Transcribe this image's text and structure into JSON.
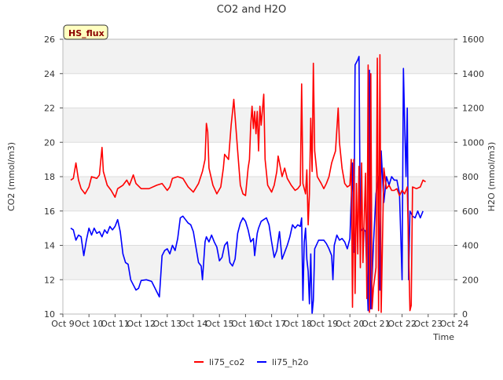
{
  "chart_data": {
    "type": "line",
    "title": "CO2 and H2O",
    "xlabel": "Time",
    "ylabel_left": "CO2 (mmol/m3)",
    "ylabel_right": "H2O (mmol/m3)",
    "badge": "HS_flux",
    "x_ticks": [
      "Oct 9",
      "Oct 10",
      "Oct 11",
      "Oct 12",
      "Oct 13",
      "Oct 14",
      "Oct 15",
      "Oct 16",
      "Oct 17",
      "Oct 18",
      "Oct 19",
      "Oct 20",
      "Oct 21",
      "Oct 22",
      "Oct 23",
      "Oct 24"
    ],
    "xlim": [
      9,
      24
    ],
    "ylim_left": [
      10,
      26
    ],
    "y_ticks_left": [
      "10",
      "12",
      "14",
      "16",
      "18",
      "20",
      "22",
      "24",
      "26"
    ],
    "ylim_right": [
      0,
      1600
    ],
    "y_ticks_right": [
      "0",
      "200",
      "400",
      "600",
      "800",
      "1000",
      "1200",
      "1400",
      "1600"
    ],
    "grid": true,
    "legend_position": "bottom",
    "colors": {
      "li75_co2": "#ff0000",
      "li75_h2o": "#0000ff",
      "band": "#f2f2f2",
      "grid": "#dddddd"
    },
    "series": [
      {
        "name": "li75_co2",
        "axis": "left",
        "points": [
          [
            9.3,
            17.8
          ],
          [
            9.4,
            17.9
          ],
          [
            9.5,
            18.8
          ],
          [
            9.6,
            17.8
          ],
          [
            9.7,
            17.3
          ],
          [
            9.85,
            17.0
          ],
          [
            10.0,
            17.4
          ],
          [
            10.1,
            18.0
          ],
          [
            10.3,
            17.9
          ],
          [
            10.4,
            18.1
          ],
          [
            10.5,
            19.7
          ],
          [
            10.55,
            18.3
          ],
          [
            10.7,
            17.5
          ],
          [
            10.85,
            17.2
          ],
          [
            11.0,
            16.8
          ],
          [
            11.1,
            17.3
          ],
          [
            11.3,
            17.5
          ],
          [
            11.45,
            17.8
          ],
          [
            11.55,
            17.5
          ],
          [
            11.7,
            18.1
          ],
          [
            11.8,
            17.6
          ],
          [
            12.0,
            17.3
          ],
          [
            12.3,
            17.3
          ],
          [
            12.6,
            17.5
          ],
          [
            12.8,
            17.6
          ],
          [
            13.0,
            17.2
          ],
          [
            13.1,
            17.4
          ],
          [
            13.2,
            17.9
          ],
          [
            13.4,
            18.0
          ],
          [
            13.6,
            17.9
          ],
          [
            13.8,
            17.4
          ],
          [
            14.0,
            17.1
          ],
          [
            14.2,
            17.6
          ],
          [
            14.35,
            18.3
          ],
          [
            14.45,
            19.0
          ],
          [
            14.5,
            21.1
          ],
          [
            14.55,
            20.6
          ],
          [
            14.6,
            18.5
          ],
          [
            14.75,
            17.5
          ],
          [
            14.9,
            17.0
          ],
          [
            15.05,
            17.4
          ],
          [
            15.15,
            18.5
          ],
          [
            15.2,
            19.3
          ],
          [
            15.35,
            19.0
          ],
          [
            15.45,
            21.0
          ],
          [
            15.55,
            22.5
          ],
          [
            15.6,
            21.5
          ],
          [
            15.7,
            19.5
          ],
          [
            15.8,
            17.5
          ],
          [
            15.9,
            17.0
          ],
          [
            16.0,
            16.9
          ],
          [
            16.1,
            18.5
          ],
          [
            16.15,
            19.0
          ],
          [
            16.2,
            21.0
          ],
          [
            16.25,
            22.1
          ],
          [
            16.3,
            20.8
          ],
          [
            16.35,
            21.8
          ],
          [
            16.4,
            20.5
          ],
          [
            16.45,
            21.8
          ],
          [
            16.5,
            19.5
          ],
          [
            16.55,
            22.1
          ],
          [
            16.6,
            21.0
          ],
          [
            16.7,
            22.8
          ],
          [
            16.75,
            19.0
          ],
          [
            16.85,
            17.5
          ],
          [
            17.0,
            17.1
          ],
          [
            17.1,
            17.5
          ],
          [
            17.2,
            18.3
          ],
          [
            17.25,
            19.2
          ],
          [
            17.3,
            18.8
          ],
          [
            17.4,
            18.0
          ],
          [
            17.5,
            18.5
          ],
          [
            17.6,
            17.9
          ],
          [
            17.75,
            17.5
          ],
          [
            17.9,
            17.2
          ],
          [
            18.0,
            17.3
          ],
          [
            18.1,
            17.5
          ],
          [
            18.15,
            23.4
          ],
          [
            18.2,
            17.6
          ],
          [
            18.3,
            17.0
          ],
          [
            18.35,
            18.4
          ],
          [
            18.4,
            15.2
          ],
          [
            18.45,
            17.0
          ],
          [
            18.5,
            21.4
          ],
          [
            18.55,
            18.3
          ],
          [
            18.6,
            24.6
          ],
          [
            18.65,
            19.5
          ],
          [
            18.75,
            18.0
          ],
          [
            18.9,
            17.6
          ],
          [
            19.0,
            17.3
          ],
          [
            19.1,
            17.6
          ],
          [
            19.2,
            18.0
          ],
          [
            19.3,
            18.8
          ],
          [
            19.45,
            19.5
          ],
          [
            19.55,
            22.0
          ],
          [
            19.6,
            20.0
          ],
          [
            19.7,
            18.5
          ],
          [
            19.8,
            17.6
          ],
          [
            19.9,
            17.4
          ],
          [
            20.0,
            17.5
          ],
          [
            20.05,
            19.0
          ],
          [
            20.1,
            10.4
          ],
          [
            20.15,
            19.0
          ],
          [
            20.2,
            11.2
          ],
          [
            20.25,
            17.6
          ],
          [
            20.3,
            13.5
          ],
          [
            20.35,
            18.6
          ],
          [
            20.4,
            12.7
          ],
          [
            20.45,
            18.8
          ],
          [
            20.5,
            13.0
          ],
          [
            20.6,
            18.2
          ],
          [
            20.65,
            10.9
          ],
          [
            20.7,
            24.5
          ],
          [
            20.75,
            10.1
          ],
          [
            20.8,
            24.0
          ],
          [
            20.85,
            10.3
          ],
          [
            20.9,
            11.5
          ],
          [
            21.0,
            12.7
          ],
          [
            21.05,
            24.9
          ],
          [
            21.1,
            10.2
          ],
          [
            21.15,
            25.1
          ],
          [
            21.2,
            10.1
          ],
          [
            21.3,
            18.5
          ],
          [
            21.4,
            17.3
          ],
          [
            21.5,
            17.5
          ],
          [
            21.6,
            17.2
          ],
          [
            21.7,
            17.2
          ],
          [
            21.8,
            17.3
          ],
          [
            21.9,
            16.9
          ],
          [
            22.0,
            17.2
          ],
          [
            22.1,
            17.0
          ],
          [
            22.2,
            17.4
          ],
          [
            22.3,
            10.2
          ],
          [
            22.35,
            10.5
          ],
          [
            22.4,
            17.4
          ],
          [
            22.55,
            17.3
          ],
          [
            22.7,
            17.4
          ],
          [
            22.8,
            17.8
          ],
          [
            22.9,
            17.7
          ]
        ]
      },
      {
        "name": "li75_h2o",
        "axis": "right",
        "points": [
          [
            9.3,
            500
          ],
          [
            9.4,
            490
          ],
          [
            9.5,
            430
          ],
          [
            9.6,
            460
          ],
          [
            9.7,
            450
          ],
          [
            9.8,
            340
          ],
          [
            9.9,
            430
          ],
          [
            10.0,
            500
          ],
          [
            10.1,
            460
          ],
          [
            10.2,
            500
          ],
          [
            10.3,
            470
          ],
          [
            10.4,
            480
          ],
          [
            10.5,
            450
          ],
          [
            10.6,
            490
          ],
          [
            10.7,
            470
          ],
          [
            10.8,
            510
          ],
          [
            10.9,
            490
          ],
          [
            11.0,
            510
          ],
          [
            11.1,
            550
          ],
          [
            11.2,
            480
          ],
          [
            11.3,
            350
          ],
          [
            11.4,
            300
          ],
          [
            11.5,
            290
          ],
          [
            11.6,
            200
          ],
          [
            11.7,
            170
          ],
          [
            11.8,
            140
          ],
          [
            11.9,
            150
          ],
          [
            12.0,
            195
          ],
          [
            12.2,
            200
          ],
          [
            12.4,
            190
          ],
          [
            12.6,
            130
          ],
          [
            12.7,
            100
          ],
          [
            12.8,
            340
          ],
          [
            12.9,
            370
          ],
          [
            13.0,
            380
          ],
          [
            13.1,
            350
          ],
          [
            13.2,
            400
          ],
          [
            13.3,
            370
          ],
          [
            13.4,
            440
          ],
          [
            13.5,
            560
          ],
          [
            13.6,
            570
          ],
          [
            13.7,
            550
          ],
          [
            13.8,
            530
          ],
          [
            13.9,
            520
          ],
          [
            14.0,
            480
          ],
          [
            14.1,
            390
          ],
          [
            14.2,
            300
          ],
          [
            14.3,
            280
          ],
          [
            14.35,
            200
          ],
          [
            14.45,
            420
          ],
          [
            14.5,
            450
          ],
          [
            14.6,
            420
          ],
          [
            14.7,
            460
          ],
          [
            14.8,
            420
          ],
          [
            14.9,
            390
          ],
          [
            15.0,
            310
          ],
          [
            15.1,
            330
          ],
          [
            15.2,
            400
          ],
          [
            15.3,
            420
          ],
          [
            15.4,
            300
          ],
          [
            15.5,
            280
          ],
          [
            15.6,
            320
          ],
          [
            15.7,
            470
          ],
          [
            15.8,
            530
          ],
          [
            15.9,
            560
          ],
          [
            16.0,
            540
          ],
          [
            16.1,
            490
          ],
          [
            16.2,
            420
          ],
          [
            16.3,
            440
          ],
          [
            16.35,
            340
          ],
          [
            16.45,
            470
          ],
          [
            16.5,
            500
          ],
          [
            16.6,
            540
          ],
          [
            16.7,
            550
          ],
          [
            16.8,
            560
          ],
          [
            16.9,
            520
          ],
          [
            17.0,
            420
          ],
          [
            17.1,
            330
          ],
          [
            17.2,
            370
          ],
          [
            17.3,
            480
          ],
          [
            17.4,
            320
          ],
          [
            17.5,
            360
          ],
          [
            17.6,
            400
          ],
          [
            17.7,
            450
          ],
          [
            17.8,
            520
          ],
          [
            17.9,
            500
          ],
          [
            18.0,
            520
          ],
          [
            18.1,
            510
          ],
          [
            18.15,
            560
          ],
          [
            18.2,
            80
          ],
          [
            18.25,
            420
          ],
          [
            18.3,
            500
          ],
          [
            18.35,
            320
          ],
          [
            18.4,
            250
          ],
          [
            18.45,
            60
          ],
          [
            18.5,
            350
          ],
          [
            18.55,
            0
          ],
          [
            18.6,
            80
          ],
          [
            18.65,
            380
          ],
          [
            18.8,
            430
          ],
          [
            19.0,
            430
          ],
          [
            19.1,
            410
          ],
          [
            19.2,
            380
          ],
          [
            19.3,
            340
          ],
          [
            19.35,
            200
          ],
          [
            19.4,
            400
          ],
          [
            19.5,
            460
          ],
          [
            19.6,
            430
          ],
          [
            19.7,
            440
          ],
          [
            19.8,
            420
          ],
          [
            19.9,
            380
          ],
          [
            20.0,
            440
          ],
          [
            20.1,
            880
          ],
          [
            20.15,
            360
          ],
          [
            20.2,
            1450
          ],
          [
            20.3,
            1480
          ],
          [
            20.35,
            1500
          ],
          [
            20.4,
            480
          ],
          [
            20.5,
            500
          ],
          [
            20.6,
            480
          ],
          [
            20.7,
            20
          ],
          [
            20.75,
            1420
          ],
          [
            20.8,
            30
          ],
          [
            20.9,
            400
          ],
          [
            21.0,
            700
          ],
          [
            21.1,
            800
          ],
          [
            21.15,
            140
          ],
          [
            21.2,
            950
          ],
          [
            21.3,
            650
          ],
          [
            21.4,
            800
          ],
          [
            21.5,
            750
          ],
          [
            21.6,
            800
          ],
          [
            21.7,
            780
          ],
          [
            21.8,
            780
          ],
          [
            21.9,
            700
          ],
          [
            22.0,
            200
          ],
          [
            22.05,
            1430
          ],
          [
            22.1,
            1100
          ],
          [
            22.15,
            800
          ],
          [
            22.2,
            1200
          ],
          [
            22.25,
            200
          ],
          [
            22.3,
            600
          ],
          [
            22.4,
            570
          ],
          [
            22.5,
            560
          ],
          [
            22.6,
            600
          ],
          [
            22.7,
            560
          ],
          [
            22.8,
            600
          ]
        ]
      }
    ]
  }
}
